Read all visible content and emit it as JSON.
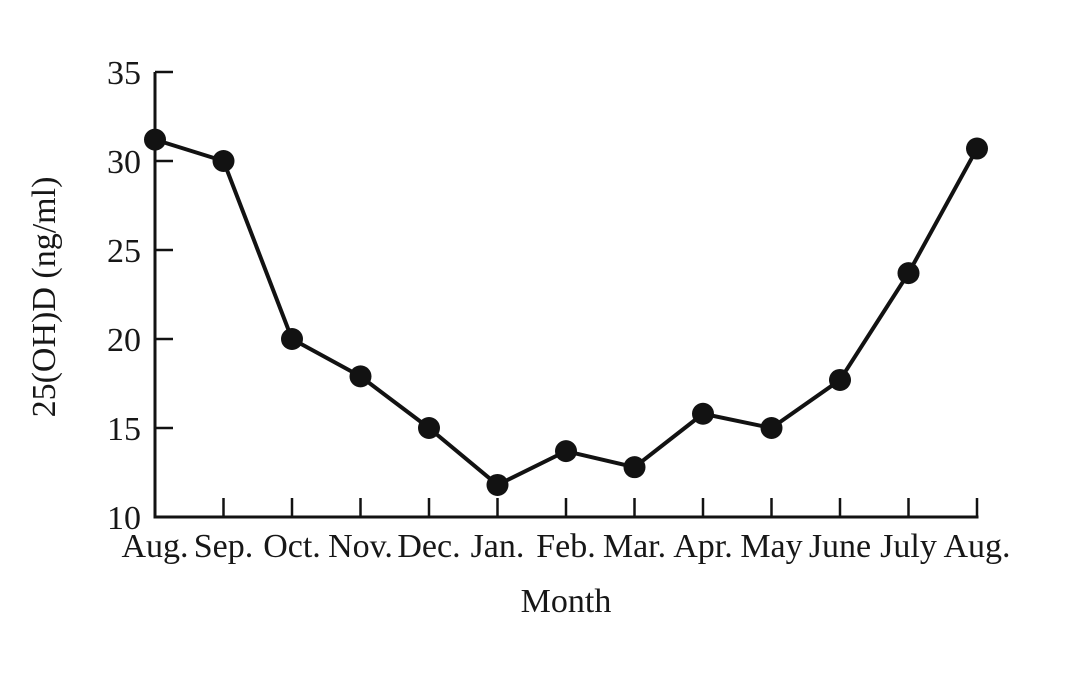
{
  "chart_data": {
    "type": "line",
    "title": "",
    "xlabel": "Month",
    "ylabel": "25(OH)D (ng/ml)",
    "categories": [
      "Aug.",
      "Sep.",
      "Oct.",
      "Nov.",
      "Dec.",
      "Jan.",
      "Feb.",
      "Mar.",
      "Apr.",
      "May",
      "June",
      "July",
      "Aug."
    ],
    "series": [
      {
        "name": "25(OH)D",
        "values": [
          31.2,
          30.0,
          20.0,
          17.9,
          15.0,
          11.8,
          13.7,
          12.8,
          15.8,
          15.0,
          17.7,
          23.7,
          30.7
        ]
      }
    ],
    "ylim": [
      10,
      35
    ],
    "yticks": [
      10,
      15,
      20,
      25,
      30,
      35
    ],
    "grid": false,
    "legend_position": "none",
    "line_color": "#121212",
    "marker": "filled-circle",
    "background_color": "#ffffff"
  }
}
